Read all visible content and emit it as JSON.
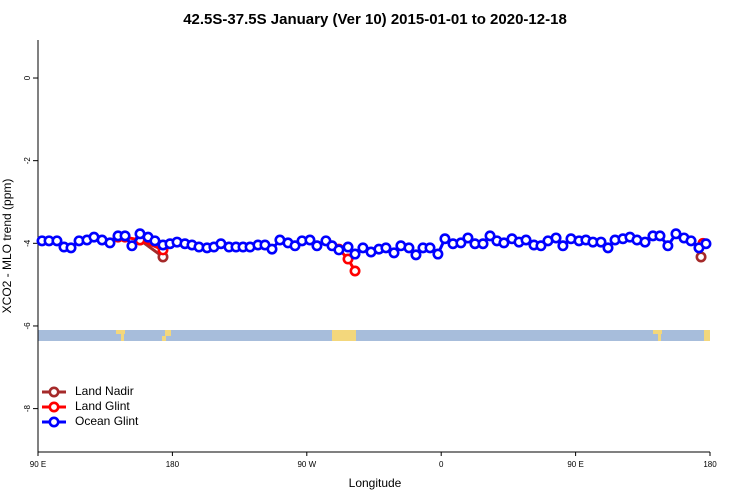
{
  "chart_data": {
    "type": "line",
    "title": "42.5S-37.5S January (Ver 10)   2015-01-01 to 2020-12-18",
    "x_label": "Longitude",
    "y_label": "XCO2 - MLO trend (ppm)",
    "xlim": [
      90,
      540
    ],
    "ylim": [
      -9.05,
      0.92
    ],
    "xticks": [
      {
        "value": 90,
        "label": "90 E"
      },
      180,
      {
        "value": 270,
        "label": "90 W"
      },
      {
        "value": 360,
        "label": "0"
      },
      {
        "value": 450,
        "label": "90 E"
      },
      {
        "value": 540,
        "label": "180"
      }
    ],
    "yticks": [
      0,
      -2,
      -4,
      -6,
      -8
    ],
    "legend": "bottom-left",
    "series": [
      {
        "name": "Land Nadir",
        "color": "#a52a2a",
        "x": [
          158.3,
          173.7,
          null,
          534.0
        ],
        "values": [
          -3.92,
          -4.33,
          null,
          -4.33
        ]
      },
      {
        "name": "Land Glint",
        "color": "#ff0000",
        "x": [
          143.6,
          148.3,
          158.3,
          173.7,
          null,
          291.5,
          297.6,
          302.3,
          null,
          535.3
        ],
        "values": [
          -3.85,
          -3.85,
          -3.92,
          -4.16,
          null,
          -4.14,
          -4.38,
          -4.67,
          null,
          -4.0
        ]
      },
      {
        "name": "Ocean Glint",
        "color": "#0000ff",
        "x": [
          92.7,
          97.4,
          102.7,
          107.4,
          112.1,
          117.5,
          122.8,
          127.5,
          132.9,
          138.2,
          143.6,
          148.3,
          152.9,
          158.3,
          163.7,
          168.3,
          173.7,
          178.4,
          183.1,
          188.4,
          193.1,
          197.8,
          203.2,
          207.8,
          212.5,
          217.9,
          222.6,
          227.3,
          232.0,
          237.3,
          242.0,
          246.7,
          252.0,
          257.4,
          262.1,
          266.8,
          272.1,
          276.8,
          282.8,
          286.9,
          291.5,
          297.6,
          302.3,
          307.6,
          313.0,
          318.3,
          323.0,
          328.4,
          333.0,
          338.4,
          343.1,
          347.8,
          352.5,
          357.8,
          362.5,
          367.9,
          373.2,
          377.9,
          382.6,
          388.0,
          392.7,
          397.3,
          402.0,
          407.4,
          412.1,
          416.8,
          422.1,
          426.8,
          431.5,
          436.9,
          441.5,
          446.9,
          452.3,
          456.9,
          461.6,
          467.0,
          471.7,
          476.4,
          481.7,
          486.4,
          491.1,
          496.5,
          501.8,
          506.5,
          511.8,
          517.2,
          522.6,
          527.3,
          532.6,
          537.3
        ],
        "values": [
          -3.94,
          -3.94,
          -3.94,
          -4.09,
          -4.11,
          -3.94,
          -3.92,
          -3.85,
          -3.92,
          -3.99,
          -3.82,
          -3.82,
          -4.06,
          -3.77,
          -3.85,
          -3.94,
          -4.04,
          -4.01,
          -3.97,
          -4.01,
          -4.04,
          -4.09,
          -4.11,
          -4.09,
          -4.01,
          -4.09,
          -4.09,
          -4.09,
          -4.09,
          -4.04,
          -4.04,
          -4.14,
          -3.92,
          -3.99,
          -4.06,
          -3.94,
          -3.92,
          -4.06,
          -3.94,
          -4.06,
          -4.16,
          -4.09,
          -4.26,
          -4.11,
          -4.21,
          -4.14,
          -4.11,
          -4.23,
          -4.06,
          -4.11,
          -4.28,
          -4.11,
          -4.11,
          -4.26,
          -3.89,
          -4.01,
          -3.99,
          -3.87,
          -4.01,
          -4.01,
          -3.82,
          -3.94,
          -3.99,
          -3.89,
          -3.97,
          -3.92,
          -4.04,
          -4.06,
          -3.94,
          -3.87,
          -4.06,
          -3.89,
          -3.94,
          -3.92,
          -3.97,
          -3.97,
          -4.11,
          -3.92,
          -3.89,
          -3.85,
          -3.92,
          -3.97,
          -3.82,
          -3.82,
          -4.06,
          -3.77,
          -3.87,
          -3.94,
          -4.11,
          -4.01
        ]
      }
    ]
  }
}
